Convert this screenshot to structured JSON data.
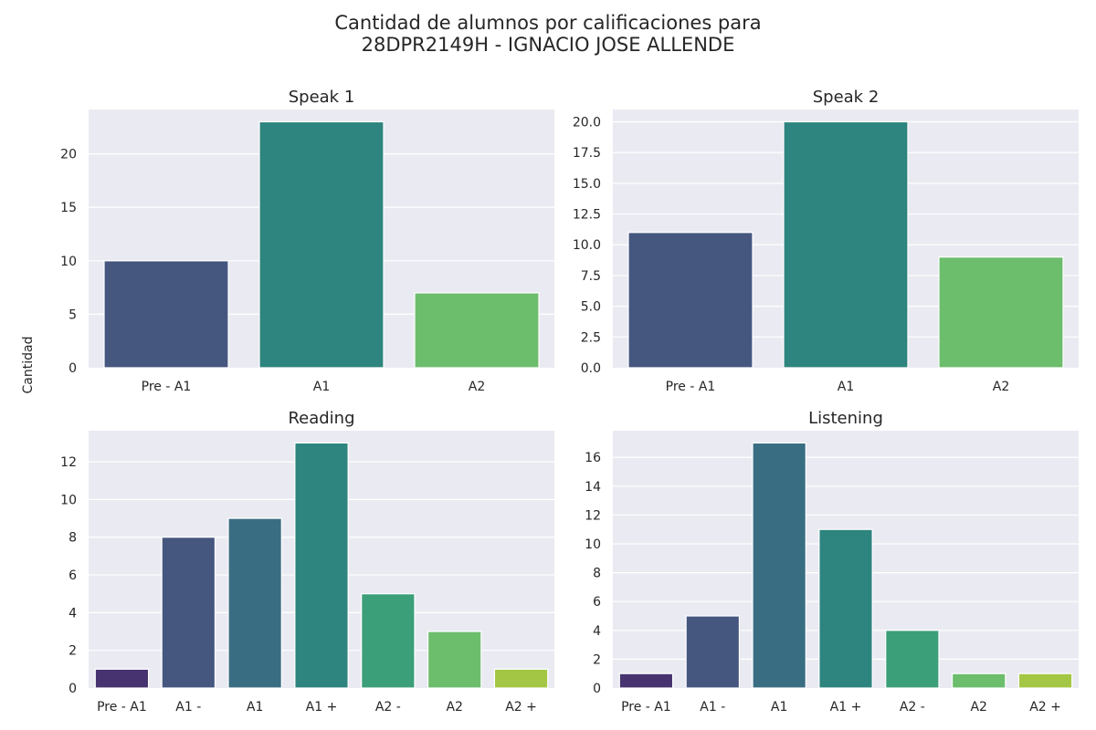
{
  "chart_data": [
    {
      "type": "bar",
      "title": "Speak 1",
      "categories": [
        "Pre - A1",
        "A1",
        "A2"
      ],
      "values": [
        10,
        23,
        7
      ],
      "colors": [
        "#45567f",
        "#2e847e",
        "#6cbd6c"
      ],
      "ylim": [
        0,
        24.15
      ],
      "yticks": [
        0,
        5,
        10,
        15,
        20
      ],
      "ytick_labels": [
        "0",
        "5",
        "10",
        "15",
        "20"
      ]
    },
    {
      "type": "bar",
      "title": "Speak 2",
      "categories": [
        "Pre - A1",
        "A1",
        "A2"
      ],
      "values": [
        11,
        20,
        9
      ],
      "colors": [
        "#45567f",
        "#2e847e",
        "#6cbd6c"
      ],
      "ylim": [
        0,
        21.0
      ],
      "yticks": [
        0,
        2.5,
        5,
        7.5,
        10,
        12.5,
        15,
        17.5,
        20
      ],
      "ytick_labels": [
        "0.0",
        "2.5",
        "5.0",
        "7.5",
        "10.0",
        "12.5",
        "15.0",
        "17.5",
        "20.0"
      ]
    },
    {
      "type": "bar",
      "title": "Reading",
      "categories": [
        "Pre - A1",
        "A1 -",
        "A1",
        "A1 +",
        "A2 -",
        "A2",
        "A2 +"
      ],
      "values": [
        1,
        8,
        9,
        13,
        5,
        3,
        1
      ],
      "colors": [
        "#46336f",
        "#45567f",
        "#396d82",
        "#2e847e",
        "#3b9f79",
        "#6cbd6c",
        "#a4c645"
      ],
      "ylim": [
        0,
        13.65
      ],
      "yticks": [
        0,
        2,
        4,
        6,
        8,
        10,
        12
      ],
      "ytick_labels": [
        "0",
        "2",
        "4",
        "6",
        "8",
        "10",
        "12"
      ]
    },
    {
      "type": "bar",
      "title": "Listening",
      "categories": [
        "Pre - A1",
        "A1 -",
        "A1",
        "A1 +",
        "A2 -",
        "A2",
        "A2 +"
      ],
      "values": [
        1,
        5,
        17,
        11,
        4,
        1,
        1
      ],
      "colors": [
        "#46336f",
        "#45567f",
        "#396d82",
        "#2e847e",
        "#3b9f79",
        "#6cbd6c",
        "#a4c645"
      ],
      "ylim": [
        0,
        17.85
      ],
      "yticks": [
        0,
        2,
        4,
        6,
        8,
        10,
        12,
        14,
        16
      ],
      "ytick_labels": [
        "0",
        "2",
        "4",
        "6",
        "8",
        "10",
        "12",
        "14",
        "16"
      ]
    }
  ],
  "figure": {
    "title_line1": "Cantidad de alumnos por calificaciones para",
    "title_line2": "28DPR2149H - IGNACIO JOSE ALLENDE",
    "ylabel": "Cantidad",
    "plot_bg": "#eaeaf2",
    "grid_color": "#ffffff",
    "text_color": "#262626"
  }
}
